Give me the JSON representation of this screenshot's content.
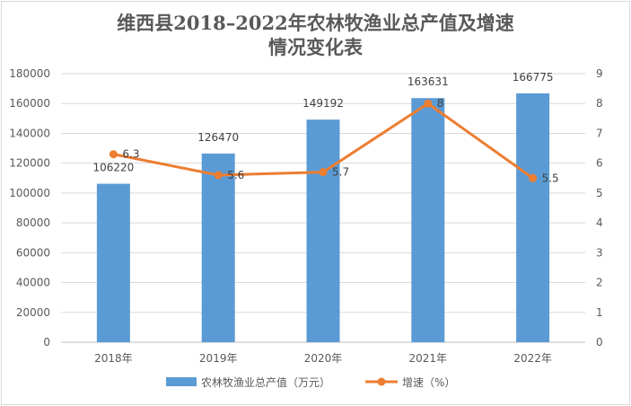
{
  "chart_data": {
    "type": "bar+line",
    "title_line1": "维西县2018–2022年农林牧渔业总产值及增速",
    "title_line2": "情况变化表",
    "categories": [
      "2018年",
      "2019年",
      "2020年",
      "2021年",
      "2022年"
    ],
    "series": [
      {
        "name": "农林牧渔业总产值（万元）",
        "type": "bar",
        "axis": "left",
        "color": "#5b9bd5",
        "values": [
          106220,
          126470,
          149192,
          163631,
          166775
        ]
      },
      {
        "name": "增速（%）",
        "type": "line",
        "axis": "right",
        "color": "#ed7d31",
        "values": [
          6.3,
          5.6,
          5.7,
          8,
          5.5
        ]
      }
    ],
    "left_axis": {
      "min": 0,
      "max": 180000,
      "step": 20000,
      "ticks": [
        "0",
        "20000",
        "40000",
        "60000",
        "80000",
        "100000",
        "120000",
        "140000",
        "160000",
        "180000"
      ]
    },
    "right_axis": {
      "min": 0,
      "max": 9,
      "step": 1,
      "ticks": [
        "0",
        "1",
        "2",
        "3",
        "4",
        "5",
        "6",
        "7",
        "8",
        "9"
      ]
    },
    "grid": true,
    "legend": "bottom"
  }
}
